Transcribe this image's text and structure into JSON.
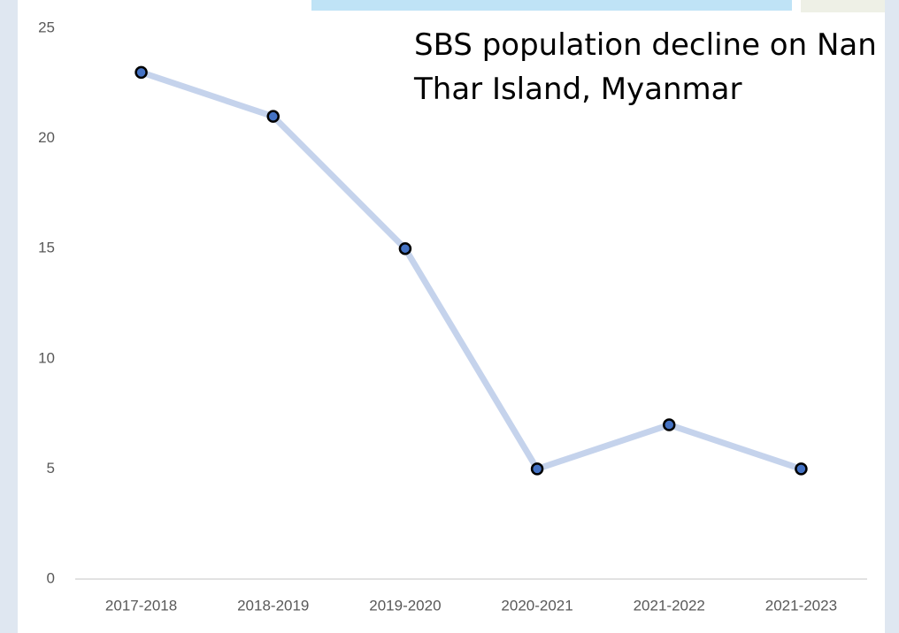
{
  "chart_data": {
    "type": "line",
    "title": "SBS population decline on Nan Thar Island, Myanmar",
    "categories": [
      "2017-2018",
      "2018-2019",
      "2019-2020",
      "2020-2021",
      "2021-2022",
      "2021-2023"
    ],
    "values": [
      23,
      21,
      15,
      5,
      7,
      5
    ],
    "color": "#c5d3ec",
    "marker_color": "#4472c4",
    "ylim": [
      0,
      25
    ],
    "yticks": [
      0,
      5,
      10,
      15,
      20,
      25
    ],
    "grid": false
  }
}
